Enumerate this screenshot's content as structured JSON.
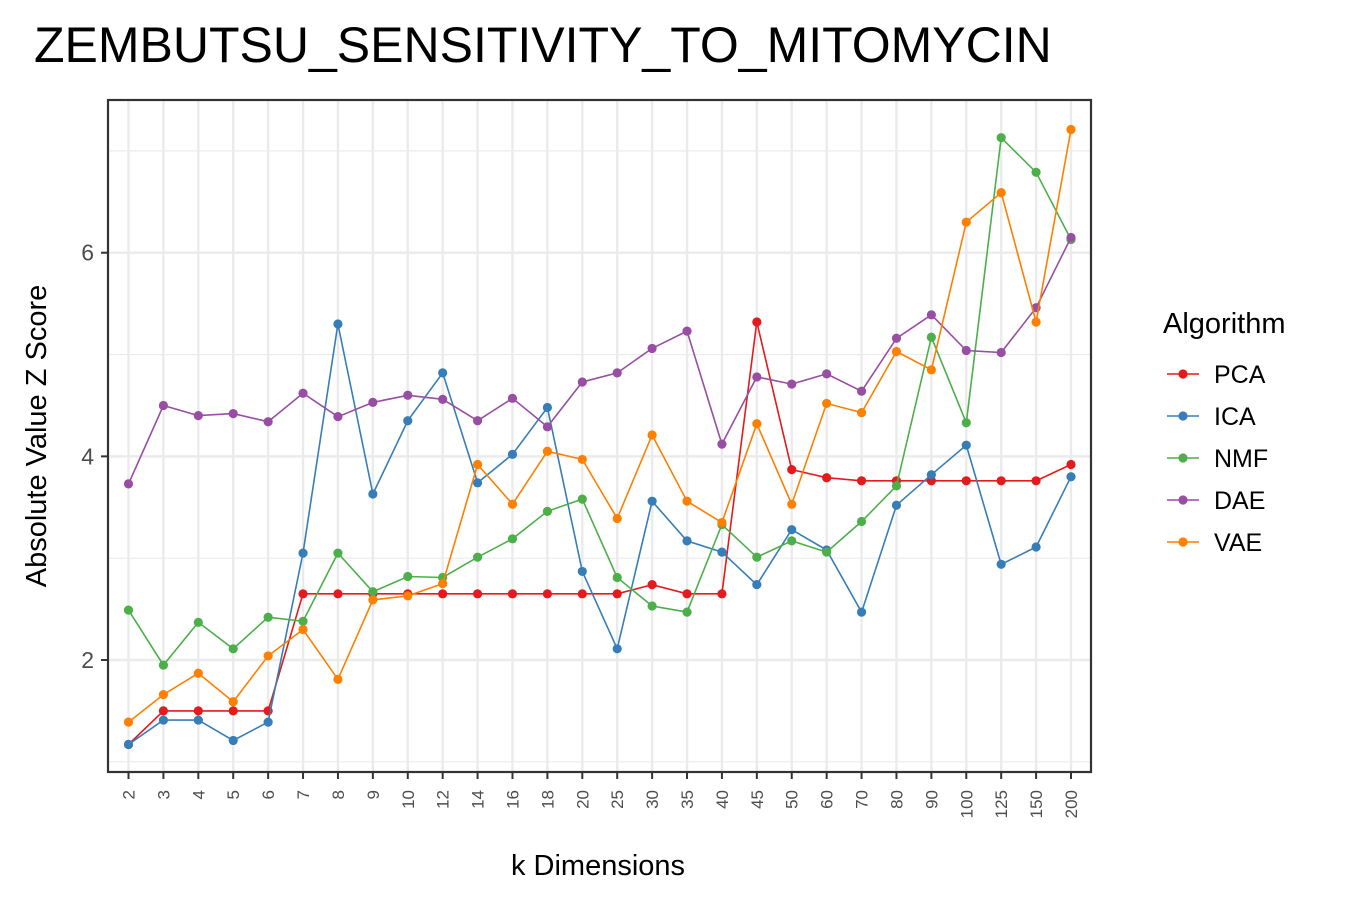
{
  "chart_data": {
    "type": "line",
    "title": "ZEMBUTSU_SENSITIVITY_TO_MITOMYCIN",
    "xlabel": "k Dimensions",
    "ylabel": "Absolute Value Z Score",
    "categories": [
      "2",
      "3",
      "4",
      "5",
      "6",
      "7",
      "8",
      "9",
      "10",
      "12",
      "14",
      "16",
      "18",
      "20",
      "25",
      "30",
      "35",
      "40",
      "45",
      "50",
      "60",
      "70",
      "80",
      "90",
      "100",
      "125",
      "150",
      "200"
    ],
    "ylim": [
      0.9,
      7.5
    ],
    "yticks": [
      "2",
      "4",
      "6"
    ],
    "grid": true,
    "legend_position": "right",
    "legend_title": "Algorithm",
    "series": [
      {
        "name": "PCA",
        "color": "#e41a1c",
        "values": [
          1.17,
          1.5,
          1.5,
          1.5,
          1.5,
          2.65,
          2.65,
          2.65,
          2.65,
          2.65,
          2.65,
          2.65,
          2.65,
          2.65,
          2.65,
          2.74,
          2.65,
          2.65,
          5.32,
          3.87,
          3.79,
          3.76,
          3.76,
          3.76,
          3.76,
          3.76,
          3.76,
          3.92
        ]
      },
      {
        "name": "ICA",
        "color": "#377eb8",
        "values": [
          1.17,
          1.41,
          1.41,
          1.21,
          1.39,
          3.05,
          5.3,
          3.63,
          4.35,
          4.82,
          3.74,
          4.02,
          4.48,
          2.87,
          2.11,
          3.56,
          3.17,
          3.06,
          2.74,
          3.28,
          3.08,
          2.47,
          3.52,
          3.82,
          4.11,
          2.94,
          3.11,
          3.8
        ]
      },
      {
        "name": "NMF",
        "color": "#4daf4a",
        "values": [
          2.49,
          1.95,
          2.37,
          2.11,
          2.42,
          2.38,
          3.05,
          2.67,
          2.82,
          2.81,
          3.01,
          3.19,
          3.46,
          3.58,
          2.81,
          2.53,
          2.47,
          3.33,
          3.01,
          3.17,
          3.06,
          3.36,
          3.71,
          5.17,
          4.33,
          7.13,
          6.79,
          6.13
        ]
      },
      {
        "name": "DAE",
        "color": "#984ea3",
        "values": [
          3.73,
          4.5,
          4.4,
          4.42,
          4.34,
          4.62,
          4.39,
          4.53,
          4.6,
          4.56,
          4.35,
          4.57,
          4.29,
          4.73,
          4.82,
          5.06,
          5.23,
          4.12,
          4.78,
          4.71,
          4.81,
          4.64,
          5.16,
          5.39,
          5.04,
          5.02,
          5.46,
          6.15
        ]
      },
      {
        "name": "VAE",
        "color": "#ff7f00",
        "values": [
          1.39,
          1.66,
          1.87,
          1.59,
          2.04,
          2.3,
          1.81,
          2.59,
          2.63,
          2.75,
          3.92,
          3.53,
          4.05,
          3.97,
          3.39,
          4.21,
          3.56,
          3.35,
          4.32,
          3.53,
          4.52,
          4.43,
          5.03,
          4.85,
          6.3,
          6.59,
          5.32,
          7.21
        ]
      }
    ]
  }
}
